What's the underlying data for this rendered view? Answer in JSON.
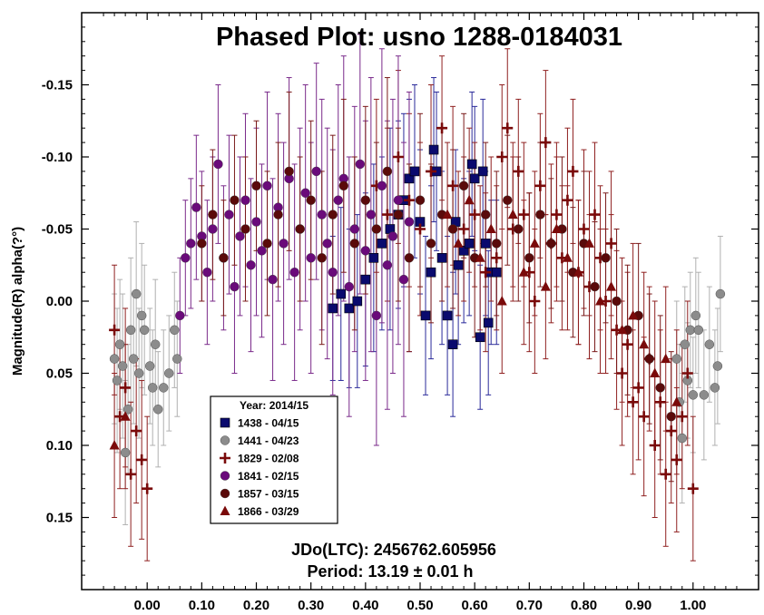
{
  "chart_data": {
    "type": "scatter",
    "title": "Phased Plot: usno 1288-0184031",
    "xlabel": "",
    "ylabel": "Magnitude(R) alpha(?°)",
    "xlim": [
      -0.12,
      1.12
    ],
    "ylim": [
      0.2,
      -0.2
    ],
    "y_inverted": true,
    "x_ticks": [
      "0.00",
      "0.10",
      "0.20",
      "0.30",
      "0.40",
      "0.50",
      "0.60",
      "0.70",
      "0.80",
      "0.90",
      "1.00"
    ],
    "y_ticks": [
      "-0.15",
      "-0.10",
      "-0.05",
      "0.00",
      "0.05",
      "0.10",
      "0.15"
    ],
    "annotations": [
      "JDo(LTC): 2456762.605956",
      "Period: 13.19 ± 0.01 h"
    ],
    "legend": {
      "title": "Year: 2014/15",
      "position": "lower-left"
    },
    "series": [
      {
        "name": "1438 - 04/15",
        "marker": "square",
        "color": "#0a0a6e",
        "errcolor": "#2a2a9a",
        "x": [
          0.34,
          0.355,
          0.37,
          0.385,
          0.4,
          0.415,
          0.43,
          0.445,
          0.46,
          0.47,
          0.48,
          0.49,
          0.5,
          0.51,
          0.52,
          0.525,
          0.53,
          0.54,
          0.55,
          0.56,
          0.565,
          0.57,
          0.58,
          0.59,
          0.595,
          0.6,
          0.61,
          0.615,
          0.62,
          0.625,
          0.63,
          0.64
        ],
        "y": [
          0.005,
          -0.005,
          0.005,
          0.0,
          -0.015,
          -0.03,
          -0.04,
          -0.05,
          -0.06,
          -0.07,
          -0.085,
          -0.09,
          -0.055,
          0.01,
          -0.02,
          -0.105,
          -0.09,
          -0.03,
          0.01,
          0.03,
          -0.055,
          -0.025,
          -0.035,
          -0.04,
          -0.095,
          -0.085,
          0.025,
          -0.09,
          -0.04,
          0.015,
          -0.02,
          -0.02
        ],
        "err": [
          0.05,
          0.06,
          0.055,
          0.06,
          0.06,
          0.065,
          0.06,
          0.07,
          0.065,
          0.06,
          0.055,
          0.06,
          0.05,
          0.055,
          0.06,
          0.05,
          0.055,
          0.06,
          0.055,
          0.05,
          0.05,
          0.055,
          0.05,
          0.05,
          0.05,
          0.05,
          0.05,
          0.05,
          0.05,
          0.05,
          0.05,
          0.05
        ]
      },
      {
        "name": "1441 - 04/23",
        "marker": "circle",
        "color": "#8c8c8c",
        "errcolor": "#b0b0b0",
        "x": [
          -0.06,
          -0.055,
          -0.05,
          -0.045,
          -0.04,
          -0.035,
          -0.03,
          -0.025,
          -0.02,
          -0.015,
          -0.01,
          -0.005,
          0.005,
          0.01,
          0.015,
          0.02,
          0.03,
          0.04,
          0.05,
          0.055,
          0.97,
          0.975,
          0.98,
          0.985,
          0.99,
          0.995,
          1.0,
          1.005,
          1.01,
          1.02,
          1.03,
          1.04,
          1.045,
          1.05
        ],
        "y": [
          0.04,
          0.055,
          0.03,
          0.045,
          0.105,
          0.075,
          0.02,
          0.04,
          -0.005,
          0.05,
          0.01,
          0.02,
          0.045,
          0.06,
          0.03,
          0.075,
          0.06,
          0.05,
          0.02,
          0.04,
          0.04,
          0.07,
          0.095,
          0.03,
          0.055,
          0.02,
          0.065,
          0.01,
          0.02,
          0.065,
          0.03,
          0.06,
          0.045,
          -0.005
        ],
        "err": [
          0.045,
          0.05,
          0.045,
          0.05,
          0.05,
          0.045,
          0.05,
          0.045,
          0.05,
          0.045,
          0.05,
          0.045,
          0.04,
          0.04,
          0.045,
          0.04,
          0.04,
          0.04,
          0.04,
          0.04,
          0.04,
          0.04,
          0.045,
          0.04,
          0.04,
          0.04,
          0.04,
          0.04,
          0.04,
          0.045,
          0.04,
          0.04,
          0.04,
          0.04
        ]
      },
      {
        "name": "1829 - 02/08",
        "marker": "cross",
        "color": "#7a0a0a",
        "errcolor": "#8f2020",
        "x": [
          -0.06,
          -0.05,
          -0.04,
          -0.03,
          -0.02,
          -0.01,
          0.0,
          0.54,
          0.56,
          0.58,
          0.6,
          0.62,
          0.64,
          0.65,
          0.66,
          0.67,
          0.68,
          0.69,
          0.7,
          0.71,
          0.72,
          0.73,
          0.74,
          0.75,
          0.76,
          0.77,
          0.78,
          0.79,
          0.8,
          0.81,
          0.82,
          0.83,
          0.84,
          0.85,
          0.86,
          0.87,
          0.88,
          0.89,
          0.9,
          0.91,
          0.92,
          0.93,
          0.94,
          0.95,
          0.96,
          0.97,
          0.98,
          0.99,
          1.0,
          0.42,
          0.44,
          0.46,
          0.48,
          0.5,
          0.52
        ],
        "y": [
          0.02,
          0.08,
          0.06,
          0.12,
          0.09,
          0.11,
          0.13,
          -0.12,
          -0.08,
          -0.05,
          -0.06,
          -0.02,
          -0.03,
          -0.1,
          -0.12,
          -0.05,
          -0.09,
          -0.06,
          -0.02,
          0.0,
          -0.08,
          -0.11,
          -0.04,
          -0.06,
          -0.03,
          -0.07,
          -0.09,
          -0.02,
          -0.05,
          -0.01,
          -0.06,
          -0.03,
          0.0,
          -0.04,
          0.02,
          0.05,
          0.03,
          0.07,
          0.06,
          0.08,
          0.04,
          0.1,
          0.07,
          0.12,
          0.09,
          0.11,
          0.08,
          0.05,
          0.13,
          -0.08,
          -0.06,
          -0.1,
          -0.07,
          -0.05,
          -0.09
        ],
        "err": [
          0.045,
          0.05,
          0.055,
          0.05,
          0.05,
          0.055,
          0.05,
          0.05,
          0.055,
          0.05,
          0.05,
          0.055,
          0.05,
          0.05,
          0.055,
          0.05,
          0.05,
          0.05,
          0.055,
          0.05,
          0.05,
          0.05,
          0.055,
          0.05,
          0.05,
          0.05,
          0.05,
          0.05,
          0.055,
          0.05,
          0.05,
          0.05,
          0.05,
          0.05,
          0.055,
          0.05,
          0.05,
          0.05,
          0.05,
          0.055,
          0.05,
          0.05,
          0.05,
          0.05,
          0.05,
          0.05,
          0.05,
          0.05,
          0.05,
          0.06,
          0.06,
          0.06,
          0.06,
          0.06,
          0.06
        ]
      },
      {
        "name": "1841 - 02/15",
        "marker": "circle",
        "color": "#6a0a7a",
        "errcolor": "#7a2a8a",
        "x": [
          0.06,
          0.07,
          0.08,
          0.09,
          0.1,
          0.11,
          0.12,
          0.13,
          0.14,
          0.15,
          0.16,
          0.17,
          0.18,
          0.19,
          0.2,
          0.21,
          0.22,
          0.23,
          0.24,
          0.25,
          0.26,
          0.27,
          0.28,
          0.29,
          0.3,
          0.31,
          0.32,
          0.33,
          0.34,
          0.35,
          0.36,
          0.37,
          0.38,
          0.39,
          0.4,
          0.41,
          0.42,
          0.43,
          0.44,
          0.45,
          0.46,
          0.47,
          0.48
        ],
        "y": [
          0.01,
          -0.03,
          -0.04,
          -0.065,
          -0.045,
          -0.02,
          -0.05,
          -0.095,
          -0.03,
          -0.06,
          -0.01,
          -0.045,
          -0.07,
          -0.025,
          -0.055,
          -0.035,
          -0.08,
          -0.015,
          -0.065,
          -0.04,
          -0.085,
          -0.02,
          -0.05,
          -0.075,
          -0.03,
          -0.09,
          -0.06,
          -0.04,
          -0.02,
          -0.07,
          -0.085,
          -0.01,
          -0.05,
          -0.095,
          -0.035,
          -0.06,
          0.01,
          -0.08,
          -0.025,
          -0.045,
          -0.07,
          -0.015,
          -0.055
        ],
        "err": [
          0.04,
          0.04,
          0.045,
          0.05,
          0.045,
          0.05,
          0.05,
          0.055,
          0.05,
          0.055,
          0.06,
          0.055,
          0.06,
          0.06,
          0.065,
          0.06,
          0.065,
          0.07,
          0.065,
          0.07,
          0.07,
          0.075,
          0.07,
          0.075,
          0.08,
          0.075,
          0.08,
          0.08,
          0.085,
          0.08,
          0.085,
          0.09,
          0.085,
          0.09,
          0.09,
          0.095,
          0.09,
          0.095,
          0.1,
          0.095,
          0.1,
          0.095,
          0.09
        ]
      },
      {
        "name": "1857 - 03/15",
        "marker": "circle",
        "color": "#5a0a0a",
        "errcolor": "#7a1a1a",
        "x": [
          0.1,
          0.12,
          0.14,
          0.16,
          0.18,
          0.2,
          0.22,
          0.24,
          0.26,
          0.28,
          0.3,
          0.32,
          0.34,
          0.36,
          0.38,
          0.4,
          0.42,
          0.44,
          0.46,
          0.48,
          0.5,
          0.52,
          0.54,
          0.56,
          0.58,
          0.6,
          0.62,
          0.64,
          0.66,
          0.68,
          0.7,
          0.72,
          0.74,
          0.76,
          0.78,
          0.8,
          0.82,
          0.84,
          0.86,
          0.88,
          0.9,
          0.92,
          0.94,
          0.96
        ],
        "y": [
          -0.04,
          -0.06,
          -0.03,
          -0.07,
          -0.05,
          -0.08,
          -0.04,
          -0.06,
          -0.09,
          -0.05,
          -0.07,
          -0.03,
          -0.06,
          -0.08,
          -0.04,
          -0.07,
          -0.05,
          -0.09,
          -0.06,
          -0.03,
          -0.07,
          -0.04,
          -0.06,
          -0.05,
          -0.08,
          -0.03,
          -0.06,
          -0.04,
          -0.07,
          -0.05,
          -0.03,
          -0.06,
          -0.04,
          -0.05,
          -0.02,
          -0.04,
          -0.01,
          -0.03,
          0.0,
          0.02,
          0.01,
          0.04,
          0.06,
          0.08
        ],
        "err": [
          0.04,
          0.045,
          0.04,
          0.045,
          0.05,
          0.045,
          0.05,
          0.05,
          0.055,
          0.05,
          0.055,
          0.06,
          0.055,
          0.06,
          0.06,
          0.065,
          0.06,
          0.065,
          0.06,
          0.065,
          0.06,
          0.055,
          0.06,
          0.055,
          0.05,
          0.055,
          0.05,
          0.05,
          0.045,
          0.05,
          0.045,
          0.05,
          0.045,
          0.05,
          0.045,
          0.05,
          0.045,
          0.045,
          0.05,
          0.045,
          0.05,
          0.045,
          0.05,
          0.045
        ]
      },
      {
        "name": "1866 - 03/29",
        "marker": "triangle",
        "color": "#7a0a0a",
        "errcolor": "#8f2020",
        "x": [
          -0.06,
          -0.04,
          0.55,
          0.57,
          0.59,
          0.61,
          0.63,
          0.65,
          0.67,
          0.69,
          0.71,
          0.73,
          0.75,
          0.77,
          0.79,
          0.81,
          0.83,
          0.85,
          0.87,
          0.89,
          0.91,
          0.93,
          0.95,
          0.97
        ],
        "y": [
          0.1,
          0.08,
          -0.06,
          -0.04,
          -0.07,
          -0.03,
          -0.05,
          0.0,
          -0.06,
          -0.02,
          -0.04,
          -0.01,
          -0.05,
          -0.03,
          -0.02,
          -0.04,
          0.0,
          -0.01,
          0.02,
          0.01,
          0.03,
          0.05,
          0.04,
          0.07
        ],
        "err": [
          0.05,
          0.05,
          0.05,
          0.05,
          0.05,
          0.05,
          0.05,
          0.05,
          0.05,
          0.05,
          0.05,
          0.05,
          0.05,
          0.05,
          0.05,
          0.05,
          0.05,
          0.05,
          0.05,
          0.05,
          0.05,
          0.05,
          0.05,
          0.05
        ]
      }
    ]
  }
}
